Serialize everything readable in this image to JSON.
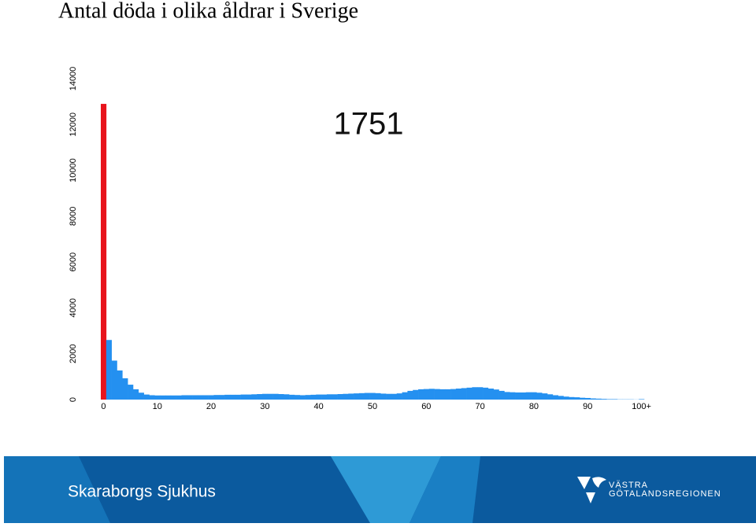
{
  "chart_data": {
    "type": "bar",
    "title": "Antal döda i olika åldrar i Sverige",
    "annotation": "1751",
    "categories": [
      "0",
      null,
      null,
      null,
      null,
      null,
      null,
      null,
      null,
      null,
      "10",
      null,
      null,
      null,
      null,
      null,
      null,
      null,
      null,
      null,
      "20",
      null,
      null,
      null,
      null,
      null,
      null,
      null,
      null,
      null,
      "30",
      null,
      null,
      null,
      null,
      null,
      null,
      null,
      null,
      null,
      "40",
      null,
      null,
      null,
      null,
      null,
      null,
      null,
      null,
      null,
      "50",
      null,
      null,
      null,
      null,
      null,
      null,
      null,
      null,
      null,
      "60",
      null,
      null,
      null,
      null,
      null,
      null,
      null,
      null,
      null,
      "70",
      null,
      null,
      null,
      null,
      null,
      null,
      null,
      null,
      null,
      "80",
      null,
      null,
      null,
      null,
      null,
      null,
      null,
      null,
      null,
      "90",
      null,
      null,
      null,
      null,
      null,
      null,
      null,
      null,
      null,
      "100+"
    ],
    "values": [
      12900,
      2600,
      1700,
      1270,
      930,
      650,
      450,
      300,
      220,
      190,
      180,
      180,
      180,
      180,
      180,
      190,
      190,
      190,
      190,
      190,
      190,
      200,
      200,
      210,
      210,
      210,
      220,
      220,
      230,
      240,
      250,
      250,
      250,
      240,
      230,
      210,
      200,
      190,
      200,
      210,
      220,
      220,
      230,
      230,
      240,
      250,
      260,
      270,
      280,
      290,
      290,
      280,
      260,
      250,
      250,
      270,
      320,
      380,
      420,
      450,
      460,
      470,
      460,
      450,
      450,
      460,
      480,
      500,
      520,
      540,
      540,
      520,
      480,
      440,
      380,
      330,
      320,
      310,
      310,
      320,
      320,
      300,
      270,
      230,
      190,
      160,
      130,
      110,
      100,
      80,
      70,
      50,
      40,
      30,
      20,
      20,
      10,
      10,
      10,
      5,
      20
    ],
    "color": "#2490f0",
    "first_bar_color": "#e8141c",
    "ylim": [
      0,
      14000
    ],
    "yticks": [
      0,
      2000,
      4000,
      6000,
      8000,
      10000,
      12000,
      14000
    ]
  },
  "footer": {
    "text": "Skaraborgs Sjukhus",
    "logo_lines": [
      "VÄSTRA",
      "GÖTALANDSREGIONEN"
    ]
  }
}
